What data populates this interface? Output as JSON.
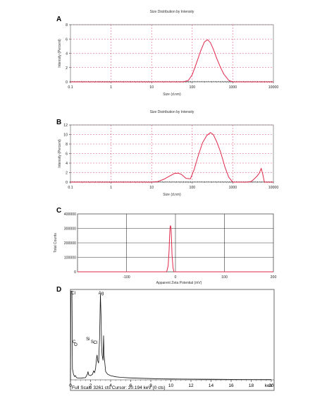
{
  "panels": {
    "A": "A",
    "B": "B",
    "C": "C",
    "D": "D"
  },
  "chart_data": [
    {
      "id": "A",
      "type": "line",
      "title": "Size Distribution by Intensity",
      "xlabel": "Size (d.nm)",
      "ylabel": "Intensity (Percent)",
      "xscale": "log",
      "xlim": [
        0.1,
        10000
      ],
      "ylim": [
        0,
        8
      ],
      "xticks": [
        0.1,
        1,
        10,
        100,
        1000,
        10000
      ],
      "xtick_labels": [
        "0.1",
        "1",
        "10",
        "100",
        "1000",
        "10000"
      ],
      "yticks": [
        0,
        2,
        4,
        6,
        8
      ],
      "ytick_labels": [
        "0",
        "2",
        "4",
        "6",
        "8"
      ],
      "grid": true,
      "grid_style": "dashed",
      "series": [
        {
          "color": "#e0284a",
          "x": [
            0.1,
            60,
            80,
            100,
            130,
            160,
            200,
            240,
            280,
            330,
            400,
            500,
            600,
            800,
            1000,
            10000
          ],
          "y": [
            0,
            0,
            0.2,
            1.0,
            2.8,
            4.3,
            5.6,
            5.9,
            5.5,
            4.6,
            3.3,
            2.0,
            1.1,
            0.2,
            0,
            0
          ]
        }
      ]
    },
    {
      "id": "B",
      "type": "line",
      "title": "Size Distribution by Intensity",
      "xlabel": "Size (d.nm)",
      "ylabel": "Intensity (Percent)",
      "xscale": "log",
      "xlim": [
        0.1,
        10000
      ],
      "ylim": [
        0,
        12
      ],
      "xticks": [
        0.1,
        1,
        10,
        100,
        1000,
        10000
      ],
      "xtick_labels": [
        "0.1",
        "1",
        "10",
        "100",
        "1000",
        "10000"
      ],
      "yticks": [
        0,
        2,
        4,
        6,
        8,
        10,
        12
      ],
      "ytick_labels": [
        "0",
        "2",
        "4",
        "6",
        "8",
        "10",
        "12"
      ],
      "grid": true,
      "grid_style": "dashed",
      "series": [
        {
          "color": "#e0284a",
          "x": [
            0.1,
            10,
            14,
            20,
            28,
            36,
            45,
            55,
            70,
            90,
            110,
            140,
            180,
            230,
            280,
            330,
            400,
            500,
            650,
            800,
            1000,
            1500,
            2200,
            2800,
            3300,
            3900,
            4500,
            5000,
            5500,
            6000,
            10000
          ],
          "y": [
            0,
            0,
            0.1,
            0.6,
            1.3,
            1.8,
            1.9,
            1.6,
            0.8,
            0.7,
            2.5,
            5.5,
            8.3,
            9.8,
            10.4,
            10.0,
            8.5,
            6.3,
            3.0,
            1.0,
            0,
            0,
            0,
            0.1,
            0.6,
            1.2,
            1.9,
            2.9,
            1.6,
            0,
            0
          ]
        }
      ]
    },
    {
      "id": "C",
      "type": "line",
      "xlabel": "Apparent Zeta Potential (mV)",
      "ylabel": "Total Counts",
      "xlim": [
        -200,
        200
      ],
      "ylim": [
        0,
        400000
      ],
      "xticks": [
        -100,
        0,
        100,
        200
      ],
      "xtick_labels": [
        "-100",
        "0",
        "100",
        "200"
      ],
      "yticks": [
        0,
        100000,
        200000,
        300000,
        400000
      ],
      "ytick_labels": [
        "0",
        "100000",
        "200000",
        "300000",
        "400000"
      ],
      "grid": true,
      "grid_style": "solid",
      "series": [
        {
          "color": "#e0284a",
          "x": [
            -200,
            -18,
            -15,
            -13,
            -12,
            -11,
            -10,
            -9,
            -8,
            -7,
            -5,
            -3,
            200
          ],
          "y": [
            0,
            0,
            40000,
            150000,
            250000,
            310000,
            320000,
            300000,
            220000,
            120000,
            30000,
            0,
            0
          ]
        }
      ]
    },
    {
      "id": "D",
      "type": "line",
      "xlabel": "keV",
      "xlim": [
        0,
        20
      ],
      "xticks": [
        0,
        2,
        4,
        6,
        8,
        10,
        12,
        14,
        16,
        18,
        20
      ],
      "xtick_labels": [
        "0",
        "2",
        "4",
        "6",
        "8",
        "10",
        "12",
        "14",
        "16",
        "18",
        "20"
      ],
      "ylim": [
        0,
        3261
      ],
      "peaks": [
        {
          "label": "Cl",
          "x": 0.15
        },
        {
          "label": "Ag",
          "x": 2.98
        },
        {
          "label": "Cl",
          "x": 2.62
        },
        {
          "label": "C",
          "x": 0.28
        },
        {
          "label": "O",
          "x": 0.52
        },
        {
          "label": "Si",
          "x": 1.74
        },
        {
          "label": "S",
          "x": 2.31
        }
      ],
      "status": "Full Scale 3261 cts  Cursor: 20.194 keV (0 cts)",
      "series": [
        {
          "color": "#111111",
          "x": [
            0,
            0.05,
            0.1,
            0.15,
            0.2,
            0.3,
            0.4,
            0.5,
            0.6,
            0.8,
            1.0,
            1.2,
            1.5,
            1.7,
            1.75,
            1.8,
            2.0,
            2.2,
            2.3,
            2.4,
            2.5,
            2.6,
            2.65,
            2.7,
            2.8,
            2.9,
            2.98,
            3.05,
            3.1,
            3.15,
            3.25,
            3.3,
            3.35,
            3.5,
            3.7,
            4.0,
            4.5,
            5,
            6,
            7,
            8,
            9,
            10,
            12,
            14,
            16,
            18,
            20
          ],
          "y": [
            0,
            3200,
            3200,
            3200,
            400,
            200,
            120,
            150,
            80,
            60,
            60,
            70,
            80,
            220,
            300,
            180,
            150,
            200,
            320,
            260,
            400,
            800,
            900,
            700,
            600,
            1500,
            3100,
            2200,
            1200,
            900,
            700,
            1600,
            900,
            300,
            200,
            150,
            110,
            90,
            70,
            55,
            45,
            35,
            30,
            25,
            20,
            15,
            10,
            8
          ]
        }
      ]
    }
  ]
}
